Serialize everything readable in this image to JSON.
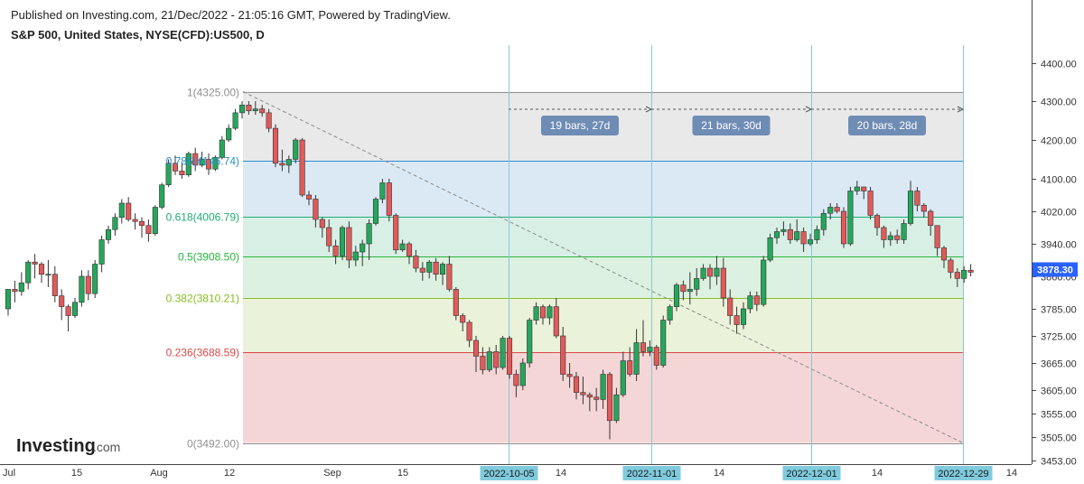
{
  "header": {
    "published": "Published on Investing.com, 21/Dec/2022 - 21:05:16 GMT, Powered by TradingView.",
    "symbol": "S&P 500, United States, NYSE(CFD):US500, D"
  },
  "brand": {
    "logo_main": "Investing",
    "logo_suffix": ".com"
  },
  "colors": {
    "up": "#26a65b",
    "down": "#e05a5a",
    "price_tag": "#2962ff",
    "date_tag": "#7fcbdd",
    "measure_tag": "#6f8cb5"
  },
  "chart_data": {
    "type": "candlestick",
    "ylim": [
      3453,
      4450
    ],
    "y_ticks": [
      "4400.00",
      "4300.00",
      "4200.00",
      "4100.00",
      "4020.00",
      "3940.00",
      "3860.00",
      "3785.00",
      "3725.00",
      "3665.00",
      "3605.00",
      "3555.00",
      "3505.00",
      "3453.00"
    ],
    "x_ticks": [
      "Jul",
      "15",
      "Aug",
      "12",
      "Sep",
      "15",
      "14",
      "14",
      "14",
      "14"
    ],
    "date_marks": [
      "2022-10-05",
      "2022-11-01",
      "2022-12-01",
      "2022-12-29"
    ],
    "last_price": "3878.30",
    "fib_levels": [
      {
        "ratio": "1",
        "value": 4325.0,
        "label": "1(4325.00)",
        "color": "#909090",
        "fill": "#e9e9e9"
      },
      {
        "ratio": "0.786",
        "value": 4146.74,
        "label": "0.786(4146.74)",
        "color": "#2a8cc7",
        "fill": "#dbe9f4"
      },
      {
        "ratio": "0.618",
        "value": 4006.79,
        "label": "0.618(4006.79)",
        "color": "#1fae72",
        "fill": "#d8efe6"
      },
      {
        "ratio": "0.5",
        "value": 3908.5,
        "label": "0.5(3908.50)",
        "color": "#28b43c",
        "fill": "#dcf1e0"
      },
      {
        "ratio": "0.382",
        "value": 3810.21,
        "label": "0.382(3810.21)",
        "color": "#86be22",
        "fill": "#eaf2d9"
      },
      {
        "ratio": "0.236",
        "value": 3688.59,
        "label": "0.236(3688.59)",
        "color": "#d94a4a",
        "fill": "#f5d6d6"
      },
      {
        "ratio": "0",
        "value": 3492.0,
        "label": "0(3492.00)",
        "color": "#909090",
        "fill": ""
      }
    ],
    "measurements": [
      "19 bars, 27d",
      "21 bars, 30d",
      "20 bars, 28d"
    ],
    "candles": [
      [
        3785,
        3830,
        3770,
        3830
      ],
      [
        3830,
        3825,
        3800,
        3850
      ],
      [
        3825,
        3845,
        3815,
        3870
      ],
      [
        3845,
        3895,
        3830,
        3900
      ],
      [
        3895,
        3890,
        3855,
        3915
      ],
      [
        3890,
        3865,
        3845,
        3895
      ],
      [
        3865,
        3865,
        3835,
        3900
      ],
      [
        3865,
        3815,
        3800,
        3885
      ],
      [
        3815,
        3790,
        3760,
        3830
      ],
      [
        3790,
        3770,
        3735,
        3795
      ],
      [
        3770,
        3800,
        3765,
        3810
      ],
      [
        3800,
        3860,
        3790,
        3875
      ],
      [
        3860,
        3820,
        3805,
        3875
      ],
      [
        3820,
        3890,
        3810,
        3900
      ],
      [
        3890,
        3950,
        3870,
        3960
      ],
      [
        3950,
        3975,
        3940,
        3985
      ],
      [
        3975,
        4005,
        3960,
        4015
      ],
      [
        4005,
        4040,
        3990,
        4050
      ],
      [
        4040,
        4000,
        3995,
        4055
      ],
      [
        4000,
        3995,
        3975,
        4015
      ],
      [
        3995,
        3985,
        3955,
        4005
      ],
      [
        3985,
        3965,
        3945,
        4000
      ],
      [
        3965,
        4030,
        3960,
        4035
      ],
      [
        4030,
        4085,
        4025,
        4090
      ],
      [
        4085,
        4140,
        4080,
        4150
      ],
      [
        4140,
        4120,
        4110,
        4160
      ],
      [
        4120,
        4110,
        4100,
        4140
      ],
      [
        4110,
        4165,
        4105,
        4170
      ],
      [
        4165,
        4135,
        4120,
        4180
      ],
      [
        4135,
        4150,
        4130,
        4170
      ],
      [
        4150,
        4125,
        4110,
        4165
      ],
      [
        4125,
        4155,
        4120,
        4160
      ],
      [
        4155,
        4200,
        4150,
        4210
      ],
      [
        4200,
        4230,
        4195,
        4240
      ],
      [
        4230,
        4270,
        4225,
        4280
      ],
      [
        4270,
        4290,
        4255,
        4300
      ],
      [
        4290,
        4275,
        4265,
        4300
      ],
      [
        4275,
        4280,
        4265,
        4300
      ],
      [
        4280,
        4270,
        4260,
        4290
      ],
      [
        4270,
        4230,
        4220,
        4280
      ],
      [
        4230,
        4140,
        4130,
        4240
      ],
      [
        4140,
        4135,
        4120,
        4175
      ],
      [
        4135,
        4150,
        4115,
        4160
      ],
      [
        4150,
        4200,
        4140,
        4205
      ],
      [
        4200,
        4060,
        4055,
        4205
      ],
      [
        4060,
        4050,
        4035,
        4070
      ],
      [
        4050,
        4000,
        3980,
        4060
      ],
      [
        4000,
        3980,
        3955,
        4005
      ],
      [
        3980,
        3935,
        3920,
        4000
      ],
      [
        3935,
        3910,
        3890,
        3950
      ],
      [
        3910,
        3980,
        3900,
        3985
      ],
      [
        3980,
        3900,
        3880,
        3995
      ],
      [
        3900,
        3920,
        3885,
        3935
      ],
      [
        3920,
        3940,
        3885,
        3950
      ],
      [
        3940,
        3990,
        3900,
        4000
      ],
      [
        3990,
        4050,
        3985,
        4055
      ],
      [
        4050,
        4090,
        4040,
        4100
      ],
      [
        4090,
        4010,
        3995,
        4100
      ],
      [
        4010,
        3925,
        3915,
        4015
      ],
      [
        3925,
        3940,
        3920,
        3950
      ],
      [
        3940,
        3910,
        3890,
        3945
      ],
      [
        3910,
        3880,
        3870,
        3925
      ],
      [
        3880,
        3870,
        3850,
        3895
      ],
      [
        3870,
        3895,
        3855,
        3900
      ],
      [
        3895,
        3865,
        3850,
        3905
      ],
      [
        3865,
        3890,
        3840,
        3895
      ],
      [
        3890,
        3830,
        3825,
        3910
      ],
      [
        3830,
        3770,
        3760,
        3835
      ],
      [
        3770,
        3755,
        3735,
        3775
      ],
      [
        3755,
        3715,
        3700,
        3760
      ],
      [
        3715,
        3680,
        3645,
        3725
      ],
      [
        3680,
        3650,
        3640,
        3700
      ],
      [
        3650,
        3690,
        3645,
        3700
      ],
      [
        3690,
        3655,
        3640,
        3705
      ],
      [
        3655,
        3720,
        3650,
        3725
      ],
      [
        3720,
        3640,
        3630,
        3725
      ],
      [
        3640,
        3615,
        3590,
        3650
      ],
      [
        3615,
        3665,
        3605,
        3675
      ],
      [
        3665,
        3760,
        3655,
        3765
      ],
      [
        3760,
        3790,
        3750,
        3800
      ],
      [
        3790,
        3765,
        3750,
        3795
      ],
      [
        3765,
        3790,
        3750,
        3795
      ],
      [
        3790,
        3725,
        3720,
        3810
      ],
      [
        3725,
        3640,
        3625,
        3745
      ],
      [
        3640,
        3635,
        3610,
        3665
      ],
      [
        3635,
        3600,
        3585,
        3645
      ],
      [
        3600,
        3595,
        3575,
        3635
      ],
      [
        3595,
        3590,
        3560,
        3600
      ],
      [
        3590,
        3585,
        3560,
        3610
      ],
      [
        3585,
        3640,
        3565,
        3650
      ],
      [
        3640,
        3540,
        3500,
        3645
      ],
      [
        3540,
        3595,
        3535,
        3610
      ],
      [
        3595,
        3670,
        3590,
        3690
      ],
      [
        3670,
        3640,
        3635,
        3700
      ],
      [
        3640,
        3710,
        3625,
        3740
      ],
      [
        3710,
        3690,
        3680,
        3760
      ],
      [
        3690,
        3700,
        3680,
        3715
      ],
      [
        3700,
        3660,
        3650,
        3705
      ],
      [
        3660,
        3760,
        3655,
        3770
      ],
      [
        3760,
        3790,
        3750,
        3795
      ],
      [
        3790,
        3840,
        3780,
        3845
      ],
      [
        3840,
        3825,
        3805,
        3850
      ],
      [
        3825,
        3830,
        3795,
        3870
      ],
      [
        3830,
        3855,
        3815,
        3880
      ],
      [
        3855,
        3880,
        3850,
        3890
      ],
      [
        3880,
        3860,
        3830,
        3890
      ],
      [
        3860,
        3880,
        3840,
        3910
      ],
      [
        3880,
        3810,
        3790,
        3905
      ],
      [
        3810,
        3770,
        3750,
        3830
      ],
      [
        3770,
        3750,
        3730,
        3790
      ],
      [
        3750,
        3785,
        3740,
        3800
      ],
      [
        3785,
        3815,
        3775,
        3825
      ],
      [
        3815,
        3795,
        3780,
        3825
      ],
      [
        3795,
        3900,
        3790,
        3910
      ],
      [
        3900,
        3955,
        3895,
        3965
      ],
      [
        3955,
        3970,
        3940,
        3980
      ],
      [
        3970,
        3975,
        3960,
        3995
      ],
      [
        3975,
        3950,
        3940,
        3990
      ],
      [
        3950,
        3970,
        3945,
        4000
      ],
      [
        3970,
        3940,
        3920,
        3980
      ],
      [
        3940,
        3950,
        3935,
        3965
      ],
      [
        3950,
        3975,
        3940,
        3985
      ],
      [
        3975,
        4015,
        3960,
        4025
      ],
      [
        4015,
        4030,
        4000,
        4040
      ],
      [
        4030,
        4020,
        4015,
        4040
      ],
      [
        4020,
        3940,
        3930,
        4030
      ],
      [
        3940,
        4070,
        3935,
        4080
      ],
      [
        4070,
        4080,
        4060,
        4095
      ],
      [
        4080,
        4070,
        4050,
        4080
      ],
      [
        4070,
        4010,
        4000,
        4080
      ],
      [
        4010,
        3980,
        3960,
        4015
      ],
      [
        3980,
        3950,
        3930,
        3985
      ],
      [
        3950,
        3960,
        3935,
        3970
      ],
      [
        3960,
        3950,
        3940,
        3975
      ],
      [
        3950,
        3990,
        3940,
        4000
      ],
      [
        3990,
        4070,
        3985,
        4095
      ],
      [
        4070,
        4035,
        4020,
        4080
      ],
      [
        4035,
        4020,
        4005,
        4040
      ],
      [
        4020,
        3985,
        3960,
        4025
      ],
      [
        3985,
        3930,
        3910,
        3985
      ],
      [
        3930,
        3900,
        3880,
        3935
      ],
      [
        3900,
        3870,
        3855,
        3905
      ],
      [
        3870,
        3855,
        3835,
        3880
      ],
      [
        3855,
        3875,
        3845,
        3885
      ],
      [
        3875,
        3870,
        3860,
        3890
      ]
    ]
  }
}
